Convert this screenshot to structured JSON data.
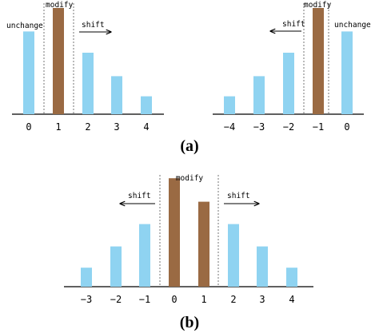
{
  "colors": {
    "unchanged_bar": "#8fd3f1",
    "modified_bar": "#9a6a43",
    "axis": "#000000",
    "divider": "#666666"
  },
  "icons": {
    "shift_arrow_right": "arrow-right-icon",
    "shift_arrow_left": "arrow-left-icon"
  },
  "panel_a_left": {
    "labels": {
      "unchange": "unchange",
      "modify": "modify",
      "shift": "shift"
    },
    "ticks": [
      "0",
      "1",
      "2",
      "3",
      "4"
    ],
    "bars": [
      {
        "x": 0,
        "h": 0.74,
        "kind": "unchanged"
      },
      {
        "x": 1,
        "h": 0.95,
        "kind": "modified"
      },
      {
        "x": 2,
        "h": 0.55,
        "kind": "unchanged"
      },
      {
        "x": 3,
        "h": 0.34,
        "kind": "unchanged"
      },
      {
        "x": 4,
        "h": 0.16,
        "kind": "unchanged"
      }
    ]
  },
  "panel_a_right": {
    "labels": {
      "unchange": "unchange",
      "modify": "modify",
      "shift": "shift"
    },
    "ticks": [
      "−4",
      "−3",
      "−2",
      "−1",
      "0"
    ],
    "bars": [
      {
        "x": -4,
        "h": 0.16,
        "kind": "unchanged"
      },
      {
        "x": -3,
        "h": 0.34,
        "kind": "unchanged"
      },
      {
        "x": -2,
        "h": 0.55,
        "kind": "unchanged"
      },
      {
        "x": -1,
        "h": 0.95,
        "kind": "modified"
      },
      {
        "x": 0,
        "h": 0.74,
        "kind": "unchanged"
      }
    ]
  },
  "caption_a": "(a)",
  "panel_b": {
    "labels": {
      "modify": "modify",
      "shift_left": "shift",
      "shift_right": "shift"
    },
    "ticks": [
      "−3",
      "−2",
      "−1",
      "0",
      "1",
      "2",
      "3",
      "4"
    ],
    "bars": [
      {
        "x": -3,
        "h": 0.17,
        "kind": "unchanged"
      },
      {
        "x": -2,
        "h": 0.36,
        "kind": "unchanged"
      },
      {
        "x": -1,
        "h": 0.56,
        "kind": "unchanged"
      },
      {
        "x": 0,
        "h": 0.97,
        "kind": "modified"
      },
      {
        "x": 1,
        "h": 0.76,
        "kind": "modified"
      },
      {
        "x": 2,
        "h": 0.56,
        "kind": "unchanged"
      },
      {
        "x": 3,
        "h": 0.36,
        "kind": "unchanged"
      },
      {
        "x": 4,
        "h": 0.17,
        "kind": "unchanged"
      }
    ]
  },
  "caption_b": "(b)"
}
